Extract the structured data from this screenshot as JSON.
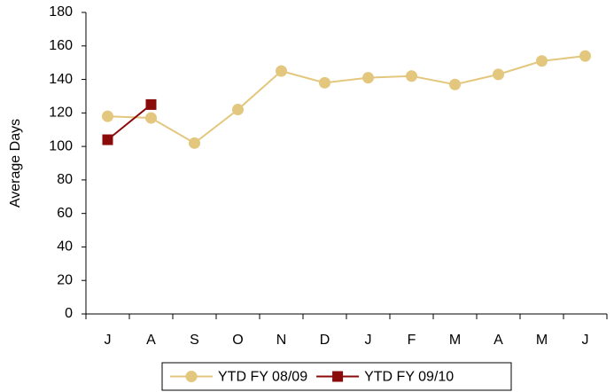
{
  "chart_data": {
    "type": "line",
    "y_label": "Average Days",
    "categories": [
      "J",
      "A",
      "S",
      "O",
      "N",
      "D",
      "J",
      "F",
      "M",
      "A",
      "M",
      "J"
    ],
    "series": [
      {
        "name": "YTD FY 08/09",
        "color": "#e3c77e",
        "marker": "circle",
        "values": [
          118,
          117,
          102,
          122,
          145,
          138,
          141,
          142,
          137,
          143,
          151,
          154
        ]
      },
      {
        "name": "YTD FY 09/10",
        "color": "#8b0a0a",
        "marker": "square",
        "values": [
          104,
          125,
          null,
          null,
          null,
          null,
          null,
          null,
          null,
          null,
          null,
          null
        ]
      }
    ],
    "ylim": [
      0,
      180
    ],
    "yticks": [
      0,
      20,
      40,
      60,
      80,
      100,
      120,
      140,
      160,
      180
    ],
    "legend": "bottom"
  }
}
